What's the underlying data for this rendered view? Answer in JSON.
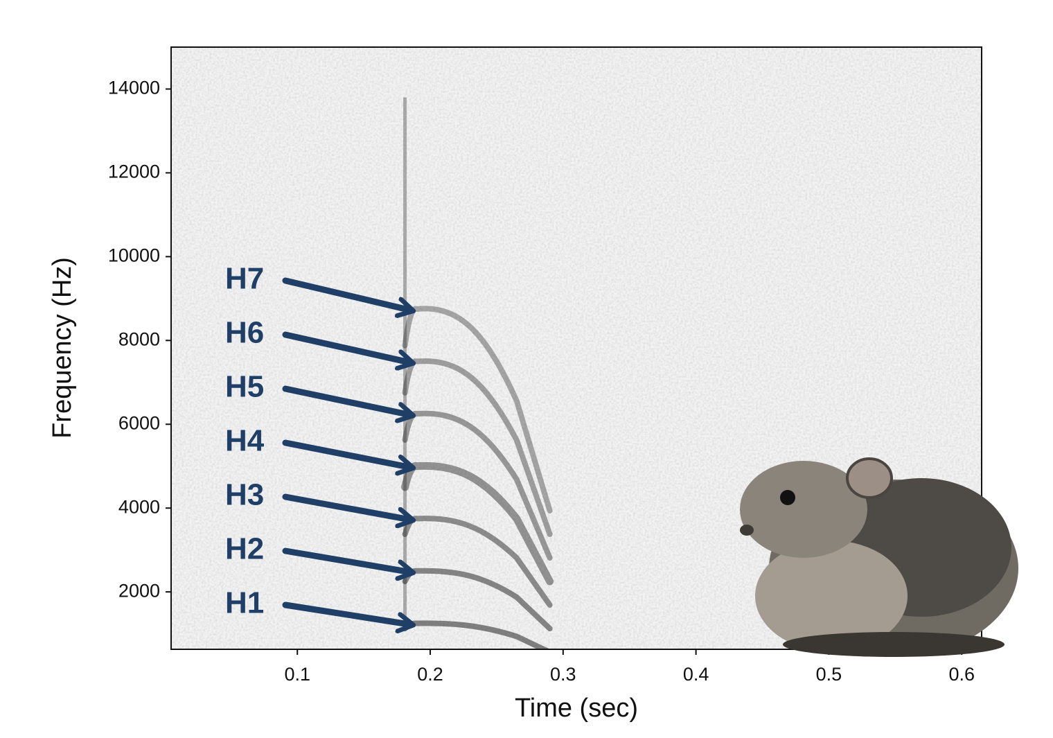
{
  "chart_data": {
    "type": "spectrogram",
    "x_label": "Time (sec)",
    "y_label": "Frequency (Hz)",
    "xlim": [
      0.005,
      0.615
    ],
    "ylim": [
      630,
      15000
    ],
    "xticks": [
      0.1,
      0.2,
      0.3,
      0.4,
      0.5,
      0.6
    ],
    "yticks": [
      2000,
      4000,
      6000,
      8000,
      10000,
      12000,
      14000
    ],
    "annotation_color": "#1f3f66",
    "annotations": [
      {
        "text": "H1",
        "x": 0.19,
        "y": 1250
      },
      {
        "text": "H2",
        "x": 0.19,
        "y": 2500
      },
      {
        "text": "H3",
        "x": 0.19,
        "y": 3750
      },
      {
        "text": "H4",
        "x": 0.19,
        "y": 5000
      },
      {
        "text": "H5",
        "x": 0.19,
        "y": 6250
      },
      {
        "text": "H6",
        "x": 0.19,
        "y": 7500
      },
      {
        "text": "H7",
        "x": 0.19,
        "y": 8750
      }
    ]
  }
}
